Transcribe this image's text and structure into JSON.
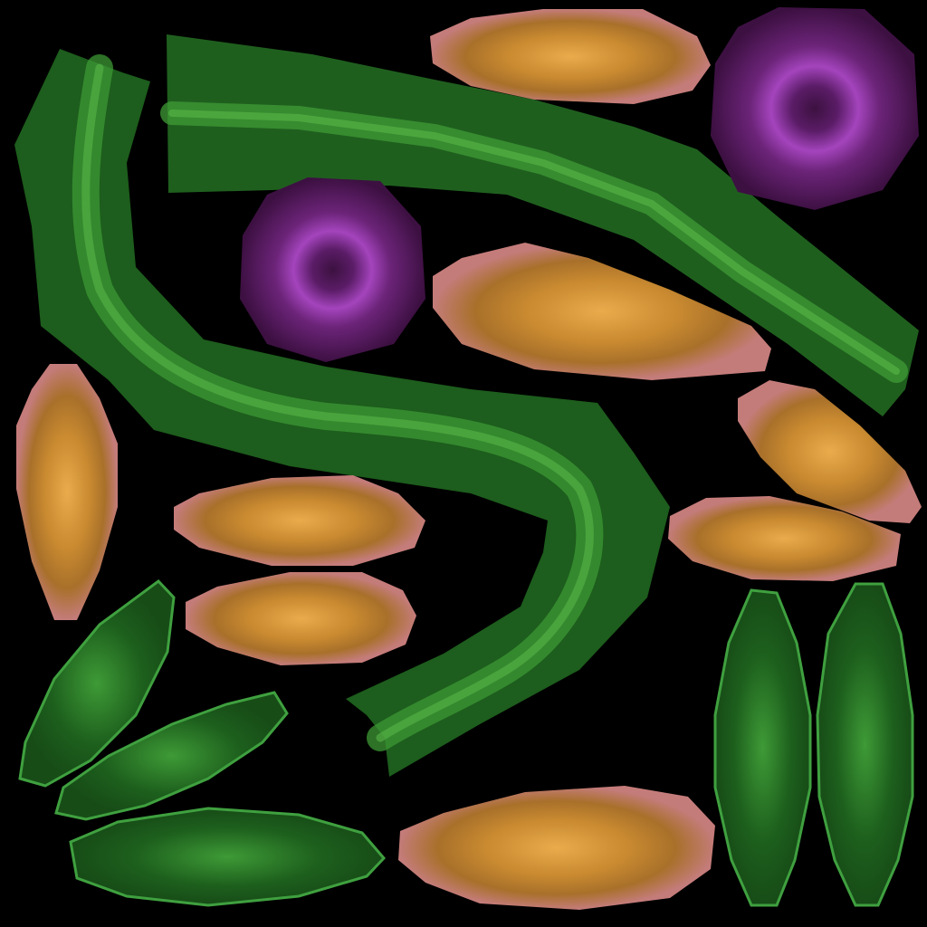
{
  "atlas": {
    "background": "#000000",
    "stem_dark": "#1b5a1b",
    "stem_mid": "#2f8a2f",
    "stem_light": "#48a83a",
    "leaf_edge": "#3fa03f",
    "petal_rim": "#c47b78",
    "petal_mid": "#b07a2a",
    "petal_core": "#e8a84a",
    "berry_dark": "#3a0f3e",
    "berry_ring": "#a040b8"
  }
}
